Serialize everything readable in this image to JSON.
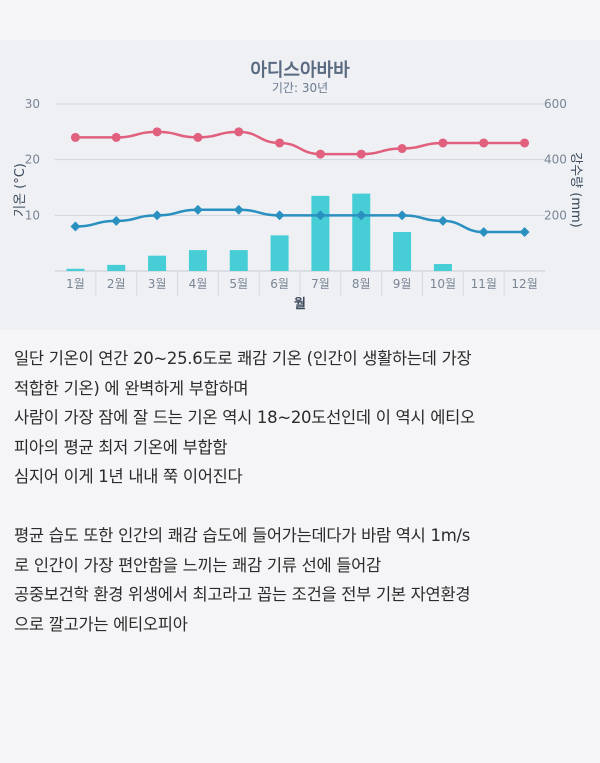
{
  "chart_data": {
    "type": "bar",
    "title": "아디스아바바",
    "subtitle": "기간: 30년",
    "xlabel": "월",
    "ylabel_left": "기온 (°C)",
    "ylabel_right": "강수량 (mm)",
    "categories": [
      "1월",
      "2월",
      "3월",
      "4월",
      "5월",
      "6월",
      "7월",
      "8월",
      "9월",
      "10월",
      "11월",
      "12월"
    ],
    "left_axis": {
      "ylim": [
        0,
        30
      ],
      "ticks": [
        "10",
        "20",
        "30"
      ]
    },
    "right_axis": {
      "ylim": [
        0,
        600
      ],
      "ticks": [
        "200",
        "400",
        "600"
      ]
    },
    "series": [
      {
        "kind": "line",
        "axis": "left",
        "color": "#e0607e",
        "values": [
          24,
          24,
          25,
          24,
          25,
          23,
          21,
          21,
          22,
          23,
          23,
          23
        ]
      },
      {
        "kind": "line",
        "axis": "left",
        "color": "#2a90c0",
        "values": [
          8,
          9,
          10,
          11,
          11,
          10,
          10,
          10,
          10,
          9,
          7,
          7
        ]
      },
      {
        "kind": "bar",
        "axis": "right",
        "color": "#46cdd6",
        "values": [
          8,
          22,
          55,
          75,
          75,
          128,
          270,
          278,
          140,
          25,
          0,
          0
        ]
      }
    ],
    "grid": true
  },
  "paragraphs": [
    "일단 기온이 연간 20~25.6도로 쾌감 기온 (인간이 생활하는데 가장",
    "적합한 기온) 에 완벽하게 부합하며",
    "사람이 가장 잠에 잘 드는 기온 역시 18~20도선인데 이 역시 에티오",
    "피아의 평균 최저 기온에 부합함",
    "심지어 이게 1년 내내 쭉 이어진다",
    "",
    "평균 습도 또한 인간의 쾌감 습도에 들어가는데다가 바람 역시 1m/s",
    "로 인간이 가장 편안함을 느끼는 쾌감 기류 선에 들어감",
    "공중보건학 환경 위생에서 최고라고 꼽는 조건을 전부 기본 자연환경",
    "으로 깔고가는 에티오피아"
  ]
}
